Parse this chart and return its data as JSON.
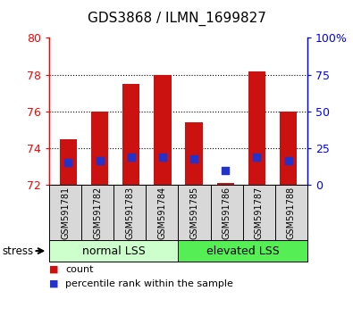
{
  "title": "GDS3868 / ILMN_1699827",
  "categories": [
    "GSM591781",
    "GSM591782",
    "GSM591783",
    "GSM591784",
    "GSM591785",
    "GSM591786",
    "GSM591787",
    "GSM591788"
  ],
  "count_values": [
    74.5,
    76.0,
    77.5,
    78.0,
    75.4,
    72.1,
    78.2,
    76.0
  ],
  "percentile_values": [
    73.2,
    73.3,
    73.5,
    73.5,
    73.4,
    72.8,
    73.5,
    73.3
  ],
  "ymin": 72,
  "ymax": 80,
  "yticks": [
    72,
    74,
    76,
    78,
    80
  ],
  "y2ticks": [
    0,
    25,
    50,
    75,
    100
  ],
  "y2tick_labels": [
    "0",
    "25",
    "50",
    "75",
    "100%"
  ],
  "bar_color": "#cc1111",
  "percentile_color": "#2233cc",
  "normal_lss_label": "normal LSS",
  "elevated_lss_label": "elevated LSS",
  "normal_lss_color": "#ccffcc",
  "elevated_lss_color": "#55ee55",
  "stress_label": "stress",
  "legend_count_label": "count",
  "legend_percentile_label": "percentile rank within the sample",
  "bar_width": 0.55,
  "baseline": 72
}
